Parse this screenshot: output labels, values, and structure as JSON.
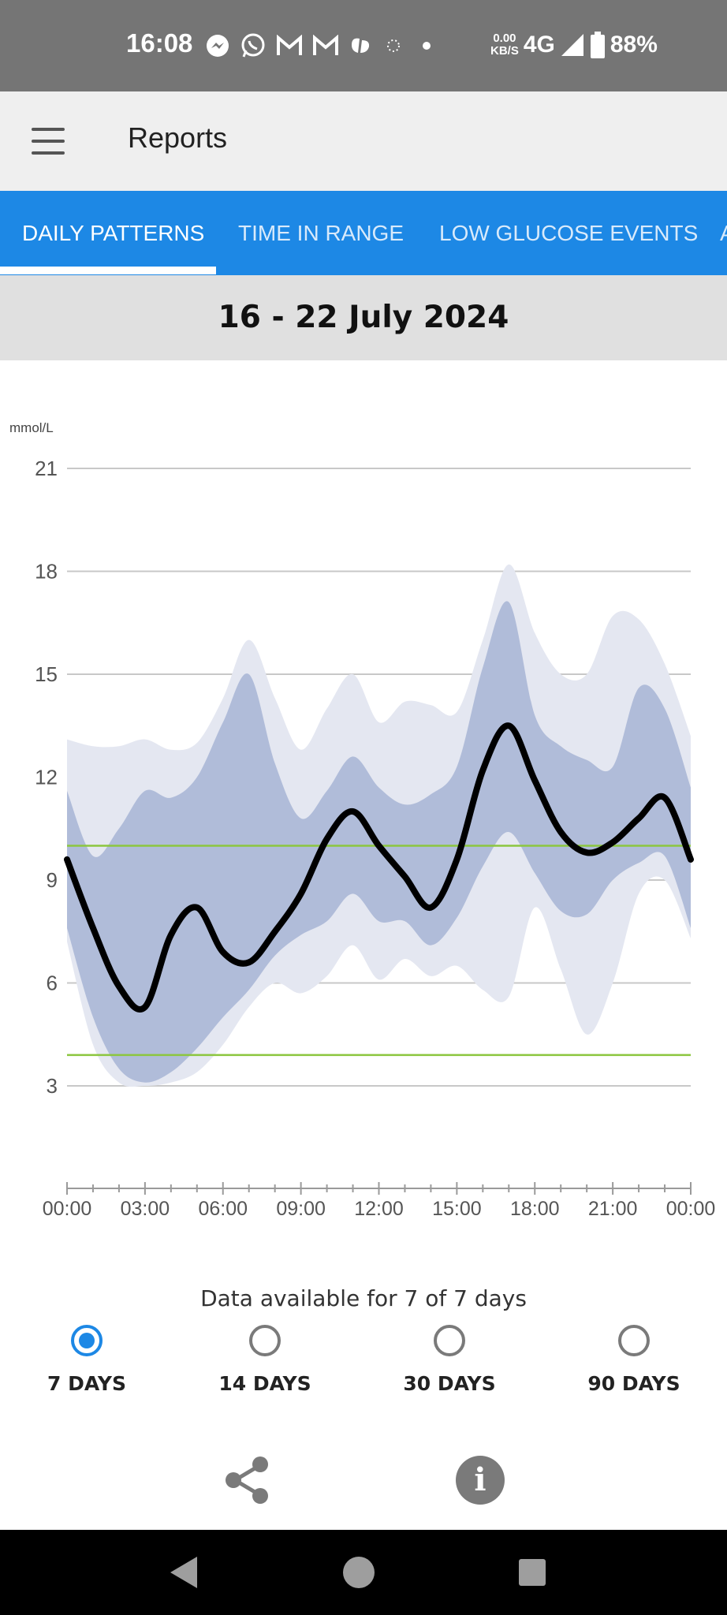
{
  "status_bar": {
    "time": "16:08",
    "speed_value": "0.00",
    "speed_unit": "KB/S",
    "network": "4G",
    "battery": "88%",
    "notification_icons": [
      "messenger-icon",
      "whatsapp-icon",
      "gmail-icon",
      "gmail-icon",
      "health-app-icon",
      "sync-icon",
      "dot-icon"
    ]
  },
  "app_bar": {
    "title": "Reports"
  },
  "tabs": [
    {
      "label": "DAILY PATTERNS",
      "active": true
    },
    {
      "label": "TIME IN RANGE",
      "active": false
    },
    {
      "label": "LOW GLUCOSE EVENTS",
      "active": false
    },
    {
      "label": "A",
      "active": false
    }
  ],
  "date_range": "16 - 22 July 2024",
  "chart_data": {
    "type": "area",
    "ylabel": "mmol/L",
    "ylim": [
      3,
      21
    ],
    "yticks": [
      21,
      18,
      15,
      12,
      9,
      6,
      3
    ],
    "xticks": [
      "00:00",
      "03:00",
      "06:00",
      "09:00",
      "12:00",
      "15:00",
      "18:00",
      "21:00",
      "00:00"
    ],
    "xlim_hours": [
      0,
      24
    ],
    "target_range": [
      3.9,
      10.0
    ],
    "target_color": "#8cc63f",
    "median_color": "#000000",
    "band_inner_color": "#b0bcd9",
    "band_outer_color": "#e4e7f1",
    "x_hours": [
      0,
      1,
      2,
      3,
      4,
      5,
      6,
      7,
      8,
      9,
      10,
      11,
      12,
      13,
      14,
      15,
      16,
      17,
      18,
      19,
      20,
      21,
      22,
      23,
      24
    ],
    "series": [
      {
        "values": [
          9.6,
          7.6,
          5.9,
          5.3,
          7.4,
          8.2,
          6.9,
          6.6,
          7.5,
          8.6,
          10.2,
          11.0,
          10.0,
          9.1,
          8.2,
          9.6,
          12.2,
          13.5,
          11.9,
          10.4,
          9.8,
          10.1,
          10.8,
          11.4,
          9.6
        ]
      },
      {
        "values": [
          11.6,
          9.7,
          10.5,
          11.6,
          11.4,
          12.0,
          13.6,
          15.0,
          12.4,
          10.8,
          11.6,
          12.6,
          11.7,
          11.2,
          11.5,
          12.3,
          15.2,
          17.1,
          13.8,
          12.9,
          12.5,
          12.3,
          14.6,
          14.0,
          11.7
        ]
      },
      {
        "values": [
          7.6,
          5.0,
          3.5,
          3.1,
          3.4,
          4.1,
          5.0,
          5.8,
          6.8,
          7.4,
          7.8,
          8.6,
          7.8,
          7.8,
          7.1,
          7.9,
          9.4,
          10.4,
          9.2,
          8.1,
          8.0,
          9.0,
          9.5,
          9.7,
          7.6
        ]
      },
      {
        "values": [
          13.1,
          12.9,
          12.9,
          13.1,
          12.8,
          13.0,
          14.3,
          16.0,
          14.3,
          12.8,
          14.0,
          15.0,
          13.6,
          14.2,
          14.1,
          13.9,
          16.0,
          18.2,
          16.2,
          15.0,
          15.0,
          16.7,
          16.6,
          15.3,
          13.2
        ]
      },
      {
        "values": [
          7.2,
          4.2,
          3.1,
          3.0,
          3.1,
          3.4,
          4.2,
          5.3,
          6.0,
          5.7,
          6.2,
          7.1,
          6.1,
          6.7,
          6.2,
          6.5,
          5.8,
          5.6,
          8.2,
          6.4,
          4.5,
          6.0,
          8.6,
          9.0,
          7.3
        ]
      }
    ]
  },
  "footnote": "Data available for 7 of 7 days",
  "range_options": [
    {
      "label": "7 DAYS",
      "selected": true
    },
    {
      "label": "14 DAYS",
      "selected": false
    },
    {
      "label": "30 DAYS",
      "selected": false
    },
    {
      "label": "90 DAYS",
      "selected": false
    }
  ],
  "actions": {
    "share_icon": "share-icon",
    "info_icon": "info-icon",
    "info_glyph": "i"
  },
  "nav_bar": {
    "buttons": [
      "back-icon",
      "home-icon",
      "recents-icon"
    ]
  }
}
